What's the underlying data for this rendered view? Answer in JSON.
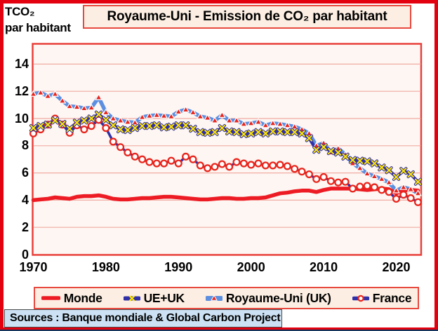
{
  "header": {
    "y_axis_unit_line1": "TCO₂",
    "y_axis_unit_line2": "par habitant",
    "title": "Royaume-Uni - Emission de CO₂ par habitant"
  },
  "footer": {
    "source": "Sources : Banque mondiale & Global Carbon Project"
  },
  "legend": {
    "position": "bottom",
    "items": [
      {
        "label": "Monde",
        "marker": "thick-line",
        "color": "#ED1C24"
      },
      {
        "label": "UE+UK",
        "marker": "x",
        "line_color": "#3030A8",
        "marker_color": "#FFE600"
      },
      {
        "label": "Royaume-Uni (UK)",
        "marker": "triangle",
        "line_color": "#5D8FE0",
        "marker_color": "#E8251C"
      },
      {
        "label": "France",
        "marker": "circle",
        "line_color": "#3030A8",
        "marker_color": "#E8251C"
      }
    ]
  },
  "colors": {
    "frame_red": "#E3000F",
    "box_border_red": "#E8493F",
    "panel_bg": "#FCEEE2",
    "plot_bg": "#FDF6F2",
    "plot_border": "#E8403A",
    "gridline": "#F2ABA3",
    "monde_red": "#ED1C24",
    "navy": "#3030A8",
    "light_blue": "#5D8FE0",
    "marker_yellow": "#FFE600",
    "marker_red": "#E8251C",
    "source_bg": "#CCE2F4"
  },
  "chart_data": {
    "type": "line",
    "title": "Royaume-Uni - Emission de CO₂ par habitant",
    "ylabel": "TCO₂ par habitant",
    "xlabel": "",
    "grid": "horizontal",
    "legend_position": "bottom",
    "ylim": [
      0,
      15.4
    ],
    "y_ticks": [
      0,
      2,
      4,
      6,
      8,
      10,
      12,
      14
    ],
    "x_ticks": [
      1970,
      1980,
      1990,
      2000,
      2010,
      2020
    ],
    "x": [
      1970,
      1971,
      1972,
      1973,
      1974,
      1975,
      1976,
      1977,
      1978,
      1979,
      1980,
      1981,
      1982,
      1983,
      1984,
      1985,
      1986,
      1987,
      1988,
      1989,
      1990,
      1991,
      1992,
      1993,
      1994,
      1995,
      1996,
      1997,
      1998,
      1999,
      2000,
      2001,
      2002,
      2003,
      2004,
      2005,
      2006,
      2007,
      2008,
      2009,
      2010,
      2011,
      2012,
      2013,
      2014,
      2015,
      2016,
      2017,
      2018,
      2019,
      2020,
      2021,
      2022,
      2023
    ],
    "series": [
      {
        "name": "Monde",
        "line_color": "#ED1C24",
        "line_width": 5.5,
        "marker": "none",
        "values": [
          4.0,
          4.05,
          4.1,
          4.2,
          4.15,
          4.1,
          4.25,
          4.3,
          4.3,
          4.35,
          4.25,
          4.1,
          4.05,
          4.05,
          4.1,
          4.15,
          4.15,
          4.2,
          4.25,
          4.25,
          4.2,
          4.15,
          4.1,
          4.05,
          4.05,
          4.1,
          4.15,
          4.15,
          4.1,
          4.1,
          4.15,
          4.15,
          4.2,
          4.35,
          4.5,
          4.55,
          4.65,
          4.7,
          4.7,
          4.6,
          4.75,
          4.85,
          4.85,
          4.85,
          4.85,
          4.8,
          4.75,
          4.8,
          4.85,
          4.8,
          4.5,
          4.7,
          4.75,
          4.7
        ]
      },
      {
        "name": "UE+UK",
        "line_color": "#3030A8",
        "line_width": 4.5,
        "marker": "x",
        "marker_color": "#FFE600",
        "values": [
          9.3,
          9.45,
          9.55,
          9.85,
          9.6,
          9.25,
          9.7,
          9.85,
          10.0,
          10.3,
          9.9,
          9.5,
          9.2,
          9.15,
          9.3,
          9.45,
          9.45,
          9.5,
          9.35,
          9.4,
          9.5,
          9.5,
          9.25,
          9.0,
          8.95,
          9.0,
          9.3,
          9.05,
          9.0,
          8.85,
          8.9,
          9.0,
          8.9,
          9.05,
          9.05,
          9.0,
          9.0,
          8.9,
          8.55,
          7.7,
          7.9,
          7.6,
          7.5,
          7.2,
          6.95,
          6.9,
          6.85,
          6.7,
          6.4,
          6.2,
          5.7,
          6.15,
          5.9,
          5.35
        ]
      },
      {
        "name": "Royaume-Uni (UK)",
        "line_color": "#5D8FE0",
        "line_width": 5.5,
        "marker": "triangle",
        "marker_color": "#E8251C",
        "values": [
          11.8,
          11.9,
          11.65,
          11.8,
          11.3,
          10.9,
          10.85,
          10.75,
          10.8,
          11.55,
          10.45,
          10.0,
          9.85,
          9.75,
          9.7,
          10.1,
          10.2,
          10.25,
          10.2,
          10.15,
          10.5,
          10.65,
          10.45,
          10.15,
          10.05,
          9.85,
          10.25,
          9.85,
          9.85,
          9.6,
          9.65,
          9.75,
          9.5,
          9.65,
          9.6,
          9.5,
          9.4,
          9.2,
          8.9,
          8.0,
          8.2,
          7.5,
          7.8,
          7.35,
          6.7,
          6.35,
          5.95,
          5.75,
          5.55,
          5.3,
          4.7,
          4.95,
          4.8,
          4.5
        ]
      },
      {
        "name": "France",
        "line_color": "#3030A8",
        "line_width": 3.5,
        "marker": "circle",
        "marker_color": "#E8251C",
        "values": [
          8.9,
          9.2,
          9.55,
          10.0,
          9.55,
          8.95,
          9.5,
          9.2,
          9.45,
          9.9,
          9.3,
          8.3,
          7.9,
          7.5,
          7.2,
          7.0,
          6.8,
          6.7,
          6.7,
          6.9,
          6.7,
          7.2,
          7.0,
          6.55,
          6.35,
          6.45,
          6.65,
          6.45,
          6.8,
          6.7,
          6.6,
          6.7,
          6.55,
          6.55,
          6.6,
          6.5,
          6.3,
          6.1,
          5.9,
          5.55,
          5.7,
          5.4,
          5.3,
          5.35,
          4.85,
          5.0,
          5.05,
          4.95,
          4.75,
          4.6,
          4.1,
          4.4,
          4.15,
          3.85
        ]
      }
    ]
  }
}
